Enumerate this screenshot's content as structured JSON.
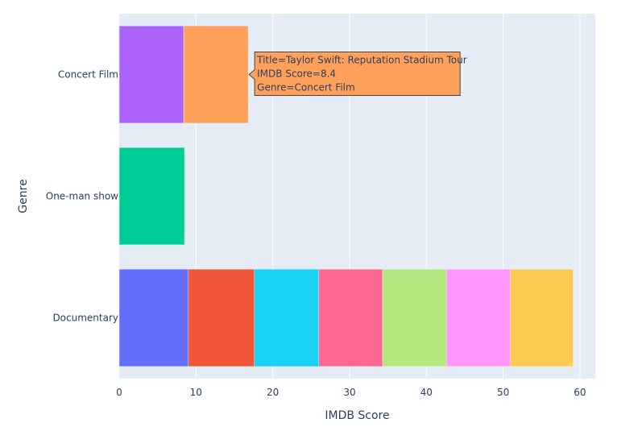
{
  "chart_data": {
    "type": "bar",
    "orientation": "horizontal",
    "barmode": "stack",
    "xlabel": "IMDB Score",
    "ylabel": "Genre",
    "xlim": [
      0,
      62
    ],
    "xticks": [
      0,
      10,
      20,
      30,
      40,
      50,
      60
    ],
    "categories": [
      "Concert Film",
      "One-man show",
      "Documentary"
    ],
    "grid": true,
    "plot_bg": "#e5ecf6",
    "segments": [
      {
        "category": "Documentary",
        "value": 9.0,
        "color": "#636efa"
      },
      {
        "category": "Documentary",
        "value": 8.6,
        "color": "#ef553b"
      },
      {
        "category": "Documentary",
        "value": 8.4,
        "color": "#19d3f3"
      },
      {
        "category": "Documentary",
        "value": 8.3,
        "color": "#ff6692"
      },
      {
        "category": "Documentary",
        "value": 8.3,
        "color": "#b6e880"
      },
      {
        "category": "Documentary",
        "value": 8.3,
        "color": "#ff97ff"
      },
      {
        "category": "Documentary",
        "value": 8.2,
        "color": "#fecb52"
      },
      {
        "category": "One-man show",
        "value": 8.5,
        "color": "#00cc96"
      },
      {
        "category": "Concert Film",
        "value": 8.4,
        "color": "#ab63fa"
      },
      {
        "category": "Concert Film",
        "value": 8.4,
        "color": "#ffa15a"
      }
    ],
    "tooltip": {
      "lines": [
        "Title=Taylor Swift: Reputation Stadium Tour",
        "IMDB Score=8.4",
        "Genre=Concert Film"
      ],
      "color": "#ffa15a",
      "target_category": "Concert Film",
      "target_segment": 1
    }
  }
}
